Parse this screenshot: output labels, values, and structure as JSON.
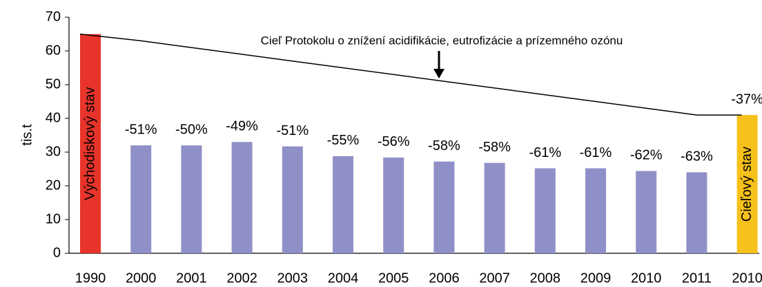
{
  "chart_data": {
    "type": "bar",
    "y_label": "tis.t",
    "categories": [
      "1990",
      "2000",
      "2001",
      "2002",
      "2003",
      "2004",
      "2005",
      "2006",
      "2007",
      "2008",
      "2009",
      "2010",
      "2011",
      "2010"
    ],
    "values": [
      65,
      32,
      32,
      33,
      31.7,
      28.8,
      28.4,
      27.2,
      26.8,
      25.2,
      25.2,
      24.4,
      24,
      41
    ],
    "colors": [
      "#e8342a",
      "#9090c8",
      "#9090c8",
      "#9090c8",
      "#9090c8",
      "#9090c8",
      "#9090c8",
      "#9090c8",
      "#9090c8",
      "#9090c8",
      "#9090c8",
      "#9090c8",
      "#9090c8",
      "#f7c11c"
    ],
    "bar_labels": [
      null,
      "-51%",
      "-50%",
      "-49%",
      "-51%",
      "-55%",
      "-56%",
      "-58%",
      "-58%",
      "-61%",
      "-61%",
      "-62%",
      "-63%",
      "-37%"
    ],
    "inner_labels": [
      "Východiskový stav",
      null,
      null,
      null,
      null,
      null,
      null,
      null,
      null,
      null,
      null,
      null,
      null,
      "Cieľový stav"
    ],
    "line": {
      "name": "Cieľ Protokolu o znížení acidifikácie, eutrofizácie a prízemného ozónu",
      "color": "#000000",
      "values": [
        65,
        63,
        61,
        59,
        57,
        55,
        53,
        51,
        49,
        47,
        45,
        43,
        41,
        41
      ]
    },
    "ylim": [
      0,
      70
    ],
    "yticks": [
      0,
      10,
      20,
      30,
      40,
      50,
      60,
      70
    ],
    "grid": false
  }
}
